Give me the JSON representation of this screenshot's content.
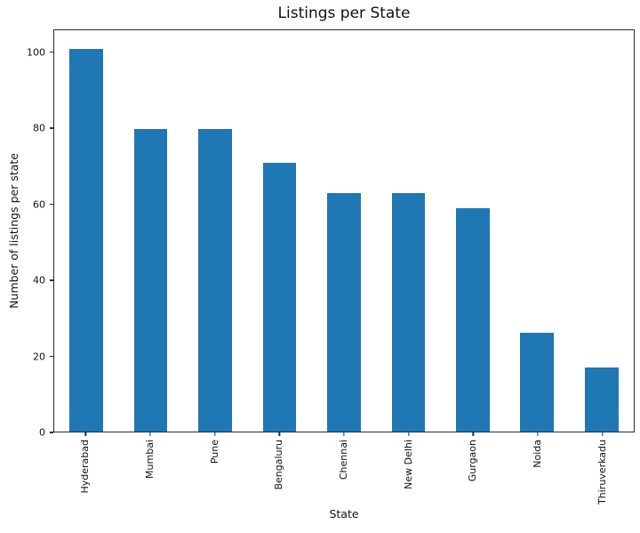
{
  "figure": {
    "background": "#ffffff",
    "spine_color": "#2b2b2b"
  },
  "chart_data": {
    "type": "bar",
    "title": "Listings per State",
    "xlabel": "State",
    "ylabel": "Number of listings per state",
    "categories": [
      "Hyderabad",
      "Mumbai",
      "Pune",
      "Bengaluru",
      "Chennai",
      "New Delhi",
      "Gurgaon",
      "Noida",
      "Thiruverkadu"
    ],
    "values": [
      101,
      80,
      80,
      71,
      63,
      63,
      59,
      26,
      17
    ],
    "yticks": [
      0,
      20,
      40,
      60,
      80,
      100
    ],
    "ylim": [
      0,
      106
    ],
    "bar_color": "#1f77b4",
    "grid": false,
    "legend": "none",
    "x_tick_rotation_deg": 90
  }
}
